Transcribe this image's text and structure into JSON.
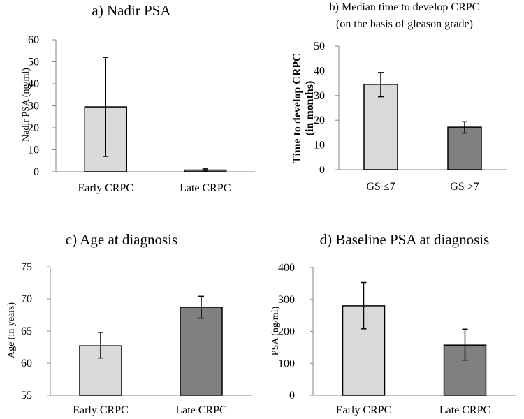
{
  "chart_data": [
    {
      "type": "bar",
      "title_lines": [
        "a) Nadir PSA"
      ],
      "ylabel": "Nadir PSA (ng/ml)",
      "ylabel_bold": false,
      "categories": [
        "Early CRPC",
        "Late CRPC"
      ],
      "values": [
        29.5,
        0.8
      ],
      "error_low": [
        7,
        0.2
      ],
      "error_high": [
        52,
        1.3
      ],
      "colors": [
        "#d9d9d9",
        "#808080"
      ],
      "ylim": [
        0,
        60
      ],
      "yticks": [
        0,
        10,
        20,
        30,
        40,
        50,
        60
      ]
    },
    {
      "type": "bar",
      "title_lines": [
        "b)  Median time to develop CRPC",
        "(on the basis of gleason grade)"
      ],
      "ylabel_lines": [
        "Time to develop CRPC",
        "(in months)"
      ],
      "ylabel_bold": true,
      "categories": [
        "GS ≤7",
        "GS >7"
      ],
      "values": [
        34.5,
        17.2
      ],
      "error_low": [
        29.5,
        14.8
      ],
      "error_high": [
        39.3,
        19.4
      ],
      "colors": [
        "#d9d9d9",
        "#808080"
      ],
      "ylim": [
        0,
        50
      ],
      "yticks": [
        0,
        10,
        20,
        30,
        40,
        50
      ]
    },
    {
      "type": "bar",
      "title_lines": [
        "c) Age at diagnosis"
      ],
      "ylabel": "Age (in years)",
      "ylabel_bold": false,
      "categories": [
        "Early CRPC",
        "Late CRPC"
      ],
      "values": [
        62.7,
        68.7
      ],
      "error_low": [
        60.8,
        67.0
      ],
      "error_high": [
        64.8,
        70.4
      ],
      "colors": [
        "#d9d9d9",
        "#808080"
      ],
      "ylim": [
        55,
        75
      ],
      "yticks": [
        55,
        60,
        65,
        70,
        75
      ]
    },
    {
      "type": "bar",
      "title_lines": [
        "d) Baseline PSA at diagnosis"
      ],
      "ylabel": "PSA (ng/ml)",
      "ylabel_bold": false,
      "categories": [
        "Early CRPC",
        "Late CRPC"
      ],
      "values": [
        280,
        157
      ],
      "error_low": [
        208,
        110
      ],
      "error_high": [
        353,
        207
      ],
      "colors": [
        "#d9d9d9",
        "#808080"
      ],
      "ylim": [
        0,
        400
      ],
      "yticks": [
        0,
        100,
        200,
        300,
        400
      ]
    }
  ]
}
